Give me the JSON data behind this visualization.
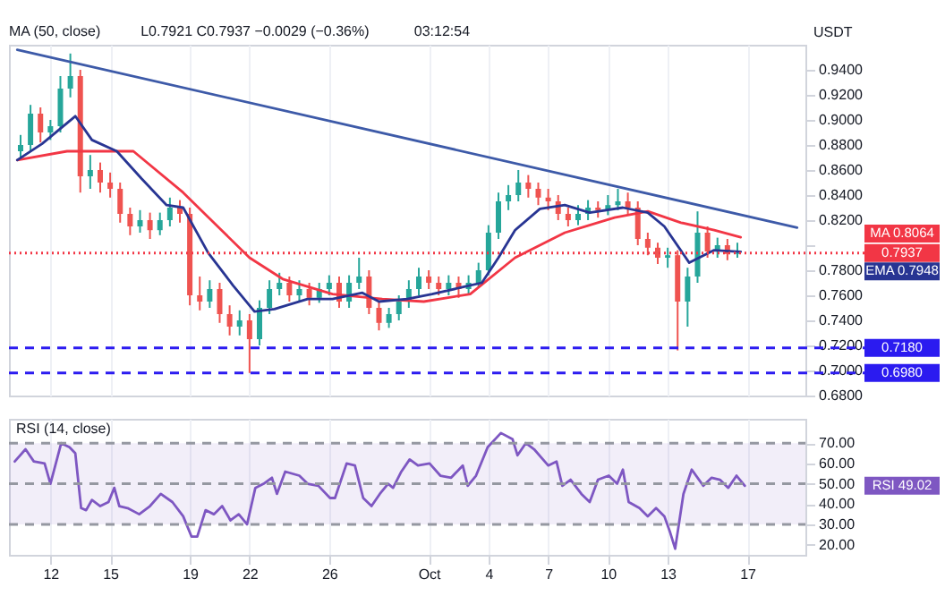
{
  "chart_data": [
    {
      "type": "candlestick",
      "ylabel": "USDT",
      "grid": "x",
      "tick_labels": "y",
      "annotations": [
        "MA (50, close)",
        "L0.7921 C0.7937 −0.0029 (−0.36%)",
        "03:12:54"
      ],
      "xlim": [
        "--09-09T22:00",
        "--10-19T22:00"
      ],
      "xticks": [
        {
          "value": "--09-12",
          "label": "12"
        },
        {
          "value": "--09-15",
          "label": "15"
        },
        {
          "value": "--09-19",
          "label": "19"
        },
        {
          "value": "--09-22",
          "label": "22"
        },
        {
          "value": "--09-26",
          "label": "26"
        },
        {
          "value": "--10-01",
          "label": "Oct"
        },
        {
          "value": "--10-04",
          "label": "4"
        },
        {
          "value": "--10-07",
          "label": "7"
        },
        {
          "value": "--10-10",
          "label": "10"
        },
        {
          "value": "--10-13",
          "label": "13"
        },
        {
          "value": "--10-17",
          "label": "17"
        }
      ],
      "ylim": [
        0.68,
        0.96
      ],
      "yticks": [
        {
          "value": 0.68,
          "label": "0.6800"
        },
        {
          "value": 0.7,
          "label": "0.7000"
        },
        {
          "value": 0.72,
          "label": "0.7200"
        },
        {
          "value": 0.74,
          "label": "0.7400"
        },
        {
          "value": 0.76,
          "label": "0.7600"
        },
        {
          "value": 0.78,
          "label": "0.7800"
        },
        {
          "value": 0.8,
          "label": null
        },
        {
          "value": 0.82,
          "label": "0.8200"
        },
        {
          "value": 0.84,
          "label": "0.8400"
        },
        {
          "value": 0.86,
          "label": "0.8600"
        },
        {
          "value": 0.88,
          "label": "0.8800"
        },
        {
          "value": 0.9,
          "label": "0.9000"
        },
        {
          "value": 0.92,
          "label": "0.9200"
        },
        {
          "value": 0.94,
          "label": "0.9400"
        }
      ],
      "x": [
        "--09-10T12:00",
        "--09-11T00:00",
        "--09-11T12:00",
        "--09-12T00:00",
        "--09-12T12:00",
        "--09-13T00:00",
        "--09-13T12:00",
        "--09-14T00:00",
        "--09-14T12:00",
        "--09-15T00:00",
        "--09-15T12:00",
        "--09-16T00:00",
        "--09-16T12:00",
        "--09-17T00:00",
        "--09-17T12:00",
        "--09-18T00:00",
        "--09-18T12:00",
        "--09-19T00:00",
        "--09-19T12:00",
        "--09-20T00:00",
        "--09-20T12:00",
        "--09-21T00:00",
        "--09-21T12:00",
        "--09-22T00:00",
        "--09-22T12:00",
        "--09-23T00:00",
        "--09-23T12:00",
        "--09-24T00:00",
        "--09-24T12:00",
        "--09-25T00:00",
        "--09-25T12:00",
        "--09-26T00:00",
        "--09-26T12:00",
        "--09-27T00:00",
        "--09-27T12:00",
        "--09-28T00:00",
        "--09-28T12:00",
        "--09-29T00:00",
        "--09-29T12:00",
        "--09-30T00:00",
        "--09-30T12:00",
        "--10-01T00:00",
        "--10-01T12:00",
        "--10-02T00:00",
        "--10-02T12:00",
        "--10-03T00:00",
        "--10-03T12:00",
        "--10-04T00:00",
        "--10-04T12:00",
        "--10-05T00:00",
        "--10-05T12:00",
        "--10-06T00:00",
        "--10-06T12:00",
        "--10-07T00:00",
        "--10-07T12:00",
        "--10-08T00:00",
        "--10-08T12:00",
        "--10-09T00:00",
        "--10-09T12:00",
        "--10-10T00:00",
        "--10-10T12:00",
        "--10-11T00:00",
        "--10-11T12:00",
        "--10-12T00:00",
        "--10-12T12:00",
        "--10-13T00:00",
        "--10-13T12:00",
        "--10-14T00:00",
        "--10-14T12:00",
        "--10-15T00:00",
        "--10-15T12:00",
        "--10-16T00:00",
        "--10-16T12:00"
      ],
      "ohlc": [
        [
          0.875,
          0.888,
          0.868,
          0.88
        ],
        [
          0.88,
          0.912,
          0.875,
          0.905
        ],
        [
          0.905,
          0.91,
          0.882,
          0.89
        ],
        [
          0.89,
          0.9,
          0.884,
          0.895
        ],
        [
          0.895,
          0.935,
          0.89,
          0.925
        ],
        [
          0.925,
          0.953,
          0.918,
          0.935
        ],
        [
          0.935,
          0.94,
          0.842,
          0.855
        ],
        [
          0.855,
          0.872,
          0.845,
          0.86
        ],
        [
          0.86,
          0.866,
          0.842,
          0.85
        ],
        [
          0.85,
          0.858,
          0.838,
          0.845
        ],
        [
          0.845,
          0.85,
          0.818,
          0.825
        ],
        [
          0.825,
          0.83,
          0.808,
          0.815
        ],
        [
          0.815,
          0.828,
          0.81,
          0.82
        ],
        [
          0.82,
          0.826,
          0.805,
          0.812
        ],
        [
          0.812,
          0.826,
          0.808,
          0.82
        ],
        [
          0.82,
          0.838,
          0.815,
          0.83
        ],
        [
          0.83,
          0.836,
          0.818,
          0.825
        ],
        [
          0.825,
          0.83,
          0.752,
          0.76
        ],
        [
          0.76,
          0.775,
          0.748,
          0.755
        ],
        [
          0.755,
          0.772,
          0.75,
          0.765
        ],
        [
          0.765,
          0.77,
          0.738,
          0.745
        ],
        [
          0.745,
          0.752,
          0.728,
          0.735
        ],
        [
          0.735,
          0.748,
          0.728,
          0.74
        ],
        [
          0.74,
          0.745,
          0.698,
          0.725
        ],
        [
          0.725,
          0.756,
          0.72,
          0.75
        ],
        [
          0.75,
          0.772,
          0.745,
          0.765
        ],
        [
          0.765,
          0.778,
          0.76,
          0.77
        ],
        [
          0.77,
          0.775,
          0.755,
          0.76
        ],
        [
          0.76,
          0.772,
          0.755,
          0.765
        ],
        [
          0.765,
          0.77,
          0.752,
          0.758
        ],
        [
          0.758,
          0.77,
          0.754,
          0.765
        ],
        [
          0.765,
          0.776,
          0.76,
          0.77
        ],
        [
          0.77,
          0.775,
          0.75,
          0.755
        ],
        [
          0.755,
          0.776,
          0.75,
          0.77
        ],
        [
          0.77,
          0.79,
          0.765,
          0.775
        ],
        [
          0.775,
          0.78,
          0.745,
          0.75
        ],
        [
          0.75,
          0.755,
          0.732,
          0.738
        ],
        [
          0.738,
          0.75,
          0.734,
          0.745
        ],
        [
          0.745,
          0.76,
          0.74,
          0.755
        ],
        [
          0.755,
          0.772,
          0.75,
          0.765
        ],
        [
          0.765,
          0.782,
          0.76,
          0.775
        ],
        [
          0.775,
          0.78,
          0.765,
          0.77
        ],
        [
          0.77,
          0.775,
          0.76,
          0.765
        ],
        [
          0.765,
          0.776,
          0.76,
          0.77
        ],
        [
          0.77,
          0.775,
          0.758,
          0.765
        ],
        [
          0.765,
          0.776,
          0.76,
          0.77
        ],
        [
          0.77,
          0.786,
          0.766,
          0.78
        ],
        [
          0.78,
          0.816,
          0.776,
          0.81
        ],
        [
          0.81,
          0.842,
          0.805,
          0.835
        ],
        [
          0.835,
          0.848,
          0.828,
          0.84
        ],
        [
          0.84,
          0.86,
          0.835,
          0.85
        ],
        [
          0.85,
          0.856,
          0.838,
          0.845
        ],
        [
          0.845,
          0.85,
          0.832,
          0.838
        ],
        [
          0.838,
          0.845,
          0.828,
          0.835
        ],
        [
          0.835,
          0.84,
          0.82,
          0.825
        ],
        [
          0.825,
          0.83,
          0.815,
          0.82
        ],
        [
          0.82,
          0.832,
          0.816,
          0.825
        ],
        [
          0.825,
          0.836,
          0.82,
          0.83
        ],
        [
          0.83,
          0.835,
          0.822,
          0.828
        ],
        [
          0.828,
          0.84,
          0.824,
          0.832
        ],
        [
          0.832,
          0.845,
          0.828,
          0.835
        ],
        [
          0.835,
          0.842,
          0.825,
          0.83
        ],
        [
          0.83,
          0.835,
          0.8,
          0.805
        ],
        [
          0.805,
          0.81,
          0.792,
          0.798
        ],
        [
          0.798,
          0.802,
          0.785,
          0.79
        ],
        [
          0.79,
          0.798,
          0.782,
          0.792
        ],
        [
          0.792,
          0.796,
          0.716,
          0.755
        ],
        [
          0.755,
          0.782,
          0.735,
          0.775
        ],
        [
          0.775,
          0.827,
          0.77,
          0.81
        ],
        [
          0.81,
          0.815,
          0.79,
          0.795
        ],
        [
          0.795,
          0.806,
          0.79,
          0.8
        ],
        [
          0.8,
          0.805,
          0.788,
          0.793
        ],
        [
          0.793,
          0.802,
          0.79,
          0.7937
        ]
      ],
      "series": [
        {
          "name": "MA",
          "color": "#f23645",
          "type": "line",
          "x": [
            "--09-10T08:00",
            "--09-12T20:00",
            "--09-16T04:00",
            "--09-18T16:00",
            "--09-22T00:00",
            "--09-23T16:00",
            "--09-26T04:00",
            "--09-28T16:00",
            "--09-30T18:00",
            "--10-03T02:00",
            "--10-05T08:00",
            "--10-07T20:00",
            "--10-10T08:00",
            "--10-12T00:00",
            "--10-13T16:00",
            "--10-15T08:00",
            "--10-16T16:00"
          ],
          "values": [
            0.868,
            0.875,
            0.875,
            0.842,
            0.79,
            0.773,
            0.761,
            0.757,
            0.755,
            0.761,
            0.79,
            0.81,
            0.822,
            0.827,
            0.818,
            0.812,
            0.8064
          ],
          "value_labels": [
            null,
            null,
            null,
            null,
            null,
            null,
            null,
            null,
            null,
            null,
            null,
            null,
            null,
            null,
            null,
            null,
            "0.8064"
          ]
        },
        {
          "name": "EMA",
          "color": "#283593",
          "type": "line",
          "x": [
            "--09-10T08:00",
            "--09-11T14:00",
            "--09-13T06:00",
            "--09-14T02:00",
            "--09-15T08:00",
            "--09-16T14:00",
            "--09-17T20:00",
            "--09-18T16:00",
            "--09-19T22:00",
            "--09-21T04:00",
            "--09-22T06:00",
            "--09-23T06:00",
            "--09-24T22:00",
            "--09-26T04:00",
            "--09-27T16:00",
            "--09-28T12:00",
            "--09-29T22:00",
            "--10-01T04:00",
            "--10-02T20:00",
            "--10-03T16:00",
            "--10-04T12:00",
            "--10-05T08:00",
            "--10-06T14:00",
            "--10-07T20:00",
            "--10-09T02:00",
            "--10-10T18:00",
            "--10-12T00:00",
            "--10-12T20:00",
            "--10-14T02:00",
            "--10-15T08:00",
            "--10-16T16:00"
          ],
          "values": [
            0.868,
            0.881,
            0.903,
            0.884,
            0.875,
            0.853,
            0.832,
            0.83,
            0.794,
            0.768,
            0.747,
            0.749,
            0.757,
            0.757,
            0.762,
            0.755,
            0.757,
            0.761,
            0.767,
            0.77,
            0.79,
            0.812,
            0.829,
            0.832,
            0.826,
            0.83,
            0.826,
            0.815,
            0.786,
            0.796,
            0.7948
          ],
          "value_labels": [
            null,
            null,
            null,
            null,
            null,
            null,
            null,
            null,
            null,
            null,
            null,
            null,
            null,
            null,
            null,
            null,
            null,
            null,
            null,
            null,
            null,
            null,
            null,
            null,
            null,
            null,
            null,
            null,
            null,
            null,
            "0.7948"
          ]
        },
        {
          "color": "#3d5aa8",
          "type": "line",
          "x": [
            "--09-10T08:00",
            "--10-19T12:00"
          ],
          "values": [
            0.956,
            0.814
          ]
        }
      ],
      "ref_lines": [
        {
          "axis": "y",
          "value": 0.7937,
          "label": "0.7937",
          "color": "#f23645",
          "line_style": "dotted"
        },
        {
          "axis": "y",
          "value": 0.718,
          "label": "0.7180",
          "color": "#2b1bf0",
          "line_style": "dashed"
        },
        {
          "axis": "y",
          "value": 0.698,
          "label": "0.6980",
          "color": "#2b1bf0",
          "line_style": "dashed"
        }
      ]
    },
    {
      "type": "line",
      "title": "RSI (14, close)",
      "grid": "x",
      "xlim": [
        "--09-09T22:00",
        "--10-19T22:00"
      ],
      "xticks": [
        {
          "value": "--09-12",
          "label": "12"
        },
        {
          "value": "--09-15",
          "label": "15"
        },
        {
          "value": "--09-19",
          "label": "19"
        },
        {
          "value": "--09-22",
          "label": "22"
        },
        {
          "value": "--09-26",
          "label": "26"
        },
        {
          "value": "--10-01",
          "label": "Oct"
        },
        {
          "value": "--10-04",
          "label": "4"
        },
        {
          "value": "--10-07",
          "label": "7"
        },
        {
          "value": "--10-10",
          "label": "10"
        },
        {
          "value": "--10-13",
          "label": "13"
        },
        {
          "value": "--10-17",
          "label": "17"
        }
      ],
      "ylim": [
        15,
        82
      ],
      "yticks": [
        {
          "value": 20,
          "label": "20.00"
        },
        {
          "value": 30,
          "label": "30.00"
        },
        {
          "value": 40,
          "label": "40.00"
        },
        {
          "value": 50,
          "label": "50.00"
        },
        {
          "value": 60,
          "label": "60.00"
        },
        {
          "value": 70,
          "label": "70.00"
        }
      ],
      "bands": [
        {
          "axis": "y",
          "from": 30,
          "to": 70,
          "color": "#7e57c2"
        }
      ],
      "ref_lines": [
        {
          "axis": "y",
          "value": 70,
          "color": "#9598a1",
          "line_style": "dashed"
        },
        {
          "axis": "y",
          "value": 50,
          "color": "#9598a1",
          "line_style": "dashed"
        },
        {
          "axis": "y",
          "value": 30,
          "color": "#9598a1",
          "line_style": "dashed"
        }
      ],
      "series": [
        {
          "name": "RSI",
          "color": "#7e57c2",
          "x": [
            "--09-10T05:00",
            "--09-10T18:00",
            "--09-11T04:00",
            "--09-11T17:00",
            "--09-12T00:00",
            "--09-12T13:00",
            "--09-12T23:00",
            "--09-13T06:00",
            "--09-13T13:00",
            "--09-13T19:00",
            "--09-14T02:00",
            "--09-14T12:00",
            "--09-14T22:00",
            "--09-15T05:00",
            "--09-15T11:00",
            "--09-15T21:00",
            "--09-16T11:00",
            "--09-17T00:00",
            "--09-17T13:00",
            "--09-18T03:00",
            "--09-18T16:00",
            "--09-19T02:00",
            "--09-19T09:00",
            "--09-19T19:00",
            "--09-20T05:00",
            "--09-20T15:00",
            "--09-21T01:00",
            "--09-21T11:00",
            "--09-21T21:00",
            "--09-22T07:00",
            "--09-22T17:00",
            "--09-23T03:00",
            "--09-23T09:00",
            "--09-23T19:00",
            "--09-24T12:00",
            "--09-24T22:00",
            "--09-25T11:00",
            "--09-26T01:00",
            "--09-26T07:00",
            "--09-26T21:00",
            "--09-27T07:00",
            "--09-27T17:00",
            "--09-28T03:00",
            "--09-28T13:00",
            "--09-28T23:00",
            "--09-29T05:00",
            "--09-29T15:00",
            "--09-30T01:00",
            "--09-30T11:00",
            "--10-01T01:00",
            "--10-01T14:00",
            "--10-02T03:00",
            "--10-02T17:00",
            "--10-02T23:00",
            "--10-03T09:00",
            "--10-03T23:00",
            "--10-04T15:00",
            "--10-05T05:00",
            "--10-05T11:00",
            "--10-05T21:00",
            "--10-06T07:00",
            "--10-07T00:00",
            "--10-07T10:00",
            "--10-07T17:00",
            "--10-08T03:00",
            "--10-08T16:00",
            "--10-09T02:00",
            "--10-09T12:00",
            "--10-10T01:00",
            "--10-10T11:00",
            "--10-10T18:00",
            "--10-11T01:00",
            "--10-11T14:00",
            "--10-12T00:00",
            "--10-12T10:00",
            "--10-12T20:00",
            "--10-13T03:00",
            "--10-13T09:00",
            "--10-13T19:00",
            "--10-14T05:00",
            "--10-14T19:00",
            "--10-15T05:00",
            "--10-15T15:00",
            "--10-16T01:00",
            "--10-16T11:00",
            "--10-16T21:00"
          ],
          "values": [
            61,
            67,
            61,
            60,
            50,
            70,
            68,
            65,
            38,
            37,
            42,
            39,
            41,
            48,
            39,
            38,
            35,
            39,
            45,
            41,
            34,
            24,
            24,
            37,
            35,
            39,
            32,
            35,
            30,
            48,
            50,
            53,
            45,
            56,
            54,
            50,
            49,
            43,
            43,
            60,
            59,
            43,
            39,
            45,
            50,
            48,
            56,
            62,
            59,
            60,
            54,
            53,
            59,
            49,
            54,
            68,
            75,
            72,
            64,
            70,
            67,
            59,
            61,
            49,
            52,
            45,
            41,
            52,
            54,
            50,
            57,
            41,
            38,
            34,
            38,
            34,
            26,
            18,
            45,
            57,
            49,
            53,
            52,
            48,
            54,
            49.02
          ],
          "value_labels": [
            null,
            null,
            null,
            null,
            null,
            null,
            null,
            null,
            null,
            null,
            null,
            null,
            null,
            null,
            null,
            null,
            null,
            null,
            null,
            null,
            null,
            null,
            null,
            null,
            null,
            null,
            null,
            null,
            null,
            null,
            null,
            null,
            null,
            null,
            null,
            null,
            null,
            null,
            null,
            null,
            null,
            null,
            null,
            null,
            null,
            null,
            null,
            null,
            null,
            null,
            null,
            null,
            null,
            null,
            null,
            null,
            null,
            null,
            null,
            null,
            null,
            null,
            null,
            null,
            null,
            null,
            null,
            null,
            null,
            null,
            null,
            null,
            null,
            null,
            null,
            null,
            null,
            null,
            null,
            null,
            null,
            null,
            null,
            null,
            null,
            "49.02"
          ]
        }
      ]
    }
  ]
}
